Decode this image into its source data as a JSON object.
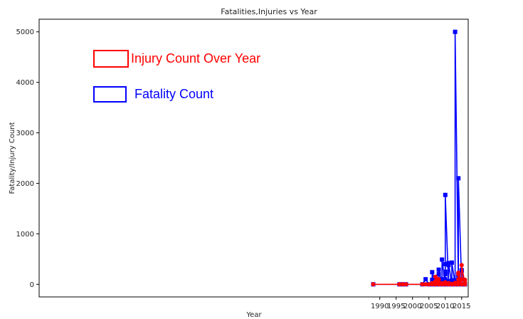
{
  "chart_data": {
    "type": "line",
    "title": "Fatalities,Injuries vs Year",
    "xlabel": "Year",
    "ylabel": "Fatality/Injury Count",
    "xlim": [
      1886,
      2017
    ],
    "ylim": [
      -250,
      5250
    ],
    "xticks": [
      1990,
      1995,
      2000,
      2005,
      2010,
      2015
    ],
    "yticks": [
      0,
      1000,
      2000,
      3000,
      4000,
      5000
    ],
    "grid": false,
    "legend_placement": "top-left",
    "series": [
      {
        "name": "Injury Count Over Year",
        "color": "#ff0000",
        "marker": "circle",
        "points": [
          [
            1988,
            0
          ],
          [
            1996,
            0
          ],
          [
            1997,
            0
          ],
          [
            1998,
            0
          ],
          [
            2003,
            0
          ],
          [
            2004,
            0
          ],
          [
            2005,
            0
          ],
          [
            2006,
            0
          ],
          [
            2006,
            10
          ],
          [
            2006,
            25
          ],
          [
            2007,
            0
          ],
          [
            2007,
            60
          ],
          [
            2007,
            150
          ],
          [
            2008,
            0
          ],
          [
            2008,
            30
          ],
          [
            2008,
            100
          ],
          [
            2009,
            0
          ],
          [
            2009,
            20
          ],
          [
            2010,
            0
          ],
          [
            2010,
            15
          ],
          [
            2010,
            40
          ],
          [
            2011,
            0
          ],
          [
            2011,
            25
          ],
          [
            2012,
            0
          ],
          [
            2012,
            10
          ],
          [
            2013,
            0
          ],
          [
            2013,
            10
          ],
          [
            2013,
            30
          ],
          [
            2014,
            0
          ],
          [
            2014,
            50
          ],
          [
            2014,
            100
          ],
          [
            2014,
            200
          ],
          [
            2014,
            230
          ],
          [
            2015,
            0
          ],
          [
            2015,
            100
          ],
          [
            2015,
            380
          ],
          [
            2016,
            0
          ],
          [
            2016,
            40
          ],
          [
            2016,
            90
          ]
        ]
      },
      {
        "name": "Fatality Count",
        "color": "#0000ff",
        "marker": "square",
        "points": [
          [
            1988,
            0
          ],
          [
            1996,
            0
          ],
          [
            1997,
            0
          ],
          [
            1998,
            0
          ],
          [
            2003,
            0
          ],
          [
            2004,
            100
          ],
          [
            2005,
            0
          ],
          [
            2006,
            0
          ],
          [
            2006,
            90
          ],
          [
            2006,
            240
          ],
          [
            2007,
            0
          ],
          [
            2007,
            80
          ],
          [
            2008,
            0
          ],
          [
            2008,
            100
          ],
          [
            2008,
            200
          ],
          [
            2008,
            290
          ],
          [
            2009,
            0
          ],
          [
            2009,
            100
          ],
          [
            2009,
            490
          ],
          [
            2010,
            0
          ],
          [
            2010,
            100
          ],
          [
            2010,
            200
          ],
          [
            2010,
            250
          ],
          [
            2010,
            400
          ],
          [
            2010,
            1770
          ],
          [
            2011,
            0
          ],
          [
            2011,
            60
          ],
          [
            2011,
            380
          ],
          [
            2011,
            420
          ],
          [
            2012,
            0
          ],
          [
            2012,
            80
          ],
          [
            2012,
            430
          ],
          [
            2013,
            0
          ],
          [
            2013,
            80
          ],
          [
            2013,
            5000
          ],
          [
            2014,
            0
          ],
          [
            2014,
            150
          ],
          [
            2014,
            200
          ],
          [
            2014,
            2100
          ],
          [
            2015,
            0
          ],
          [
            2015,
            100
          ],
          [
            2015,
            270
          ],
          [
            2015,
            280
          ],
          [
            2016,
            0
          ]
        ]
      }
    ]
  }
}
